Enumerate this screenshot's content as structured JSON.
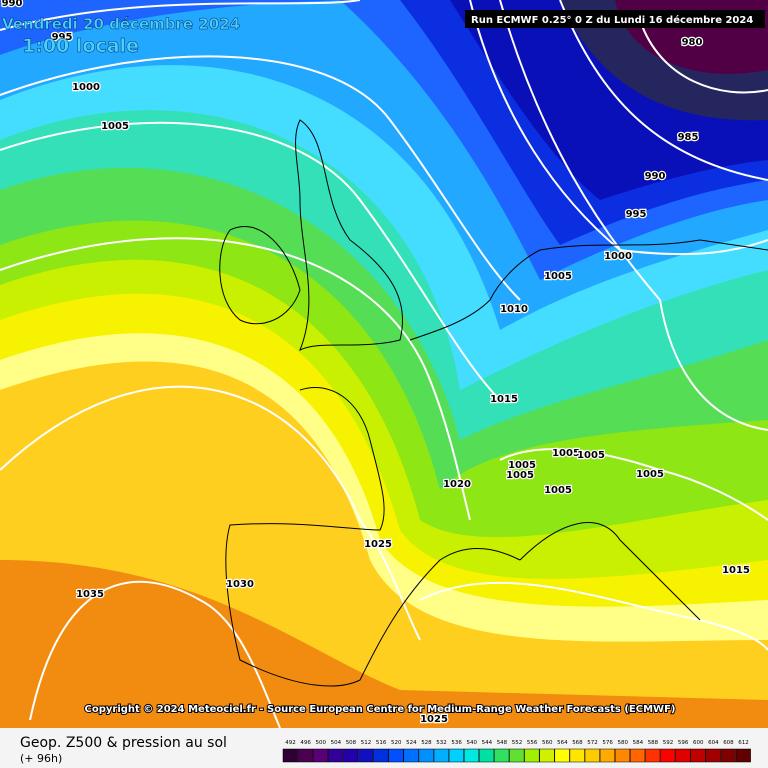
{
  "header": {
    "date": "Vendredi 20 décembre 2024",
    "time": "1:00 locale",
    "run": "Run ECMWF 0.25° 0 Z du Lundi 16 décembre 2024"
  },
  "copyright": "Copyright © 2024 Meteociel.fr - Source European Centre for Medium-Range Weather Forecasts (ECMWF)",
  "isobar_labels": [
    990,
    995,
    1000,
    1005,
    980,
    985,
    990,
    995,
    1000,
    1005,
    1010,
    1015,
    1020,
    1005,
    1005,
    1005,
    1005,
    1005,
    1005,
    1025,
    1030,
    1035,
    1015,
    1025
  ],
  "footer": {
    "title": "Geop. Z500 & pression au sol",
    "lead": "(+ 96h)"
  },
  "legend": {
    "labels": [
      492,
      496,
      500,
      504,
      508,
      512,
      516,
      520,
      524,
      528,
      532,
      536,
      540,
      544,
      548,
      552,
      556,
      560,
      564,
      568,
      572,
      576,
      580,
      584,
      588,
      592,
      596,
      600,
      604,
      608,
      612
    ],
    "colors": [
      "#2e0033",
      "#4b0050",
      "#5a0077",
      "#330099",
      "#2200aa",
      "#1010c0",
      "#0030e0",
      "#0050ff",
      "#0070ff",
      "#0090ff",
      "#00b0ff",
      "#00d0ff",
      "#00e8e0",
      "#00e0a0",
      "#30e060",
      "#60e030",
      "#a0f000",
      "#d0f000",
      "#ffff00",
      "#ffe600",
      "#ffcc00",
      "#ffaa00",
      "#ff8800",
      "#ff6600",
      "#ff3300",
      "#ff0000",
      "#e00000",
      "#c00000",
      "#a00000",
      "#800000",
      "#600000"
    ]
  }
}
